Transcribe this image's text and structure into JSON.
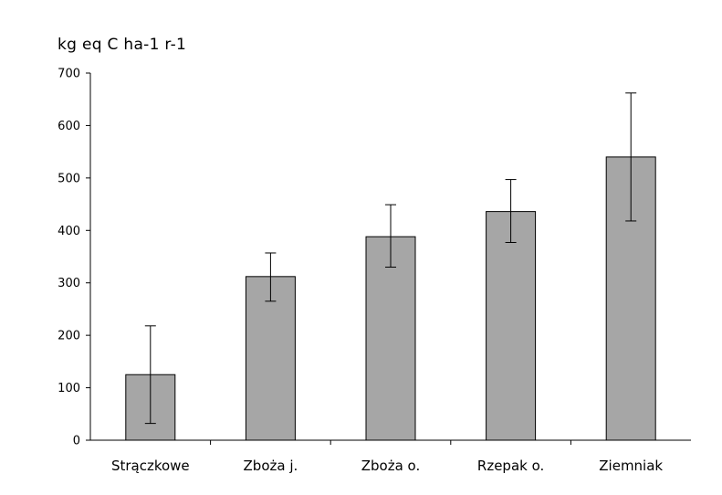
{
  "chart_data": {
    "type": "bar",
    "title": "",
    "xlabel": "",
    "ylabel": "kg eq C ha-1 r-1",
    "ylim": [
      0,
      700
    ],
    "yticks": [
      0,
      100,
      200,
      300,
      400,
      500,
      600,
      700
    ],
    "grid": false,
    "legend": "none",
    "categories": [
      "Strączkowe",
      "Zboża j.",
      "Zboża o.",
      "Rzepak o.",
      "Ziemniak"
    ],
    "values": [
      125,
      312,
      388,
      436,
      540
    ],
    "error_low": [
      32,
      265,
      330,
      377,
      418
    ],
    "error_high": [
      218,
      357,
      449,
      497,
      662
    ],
    "colors": {
      "bar_fill": "#a6a6a6",
      "bar_stroke": "#000000",
      "axis": "#000000"
    }
  }
}
